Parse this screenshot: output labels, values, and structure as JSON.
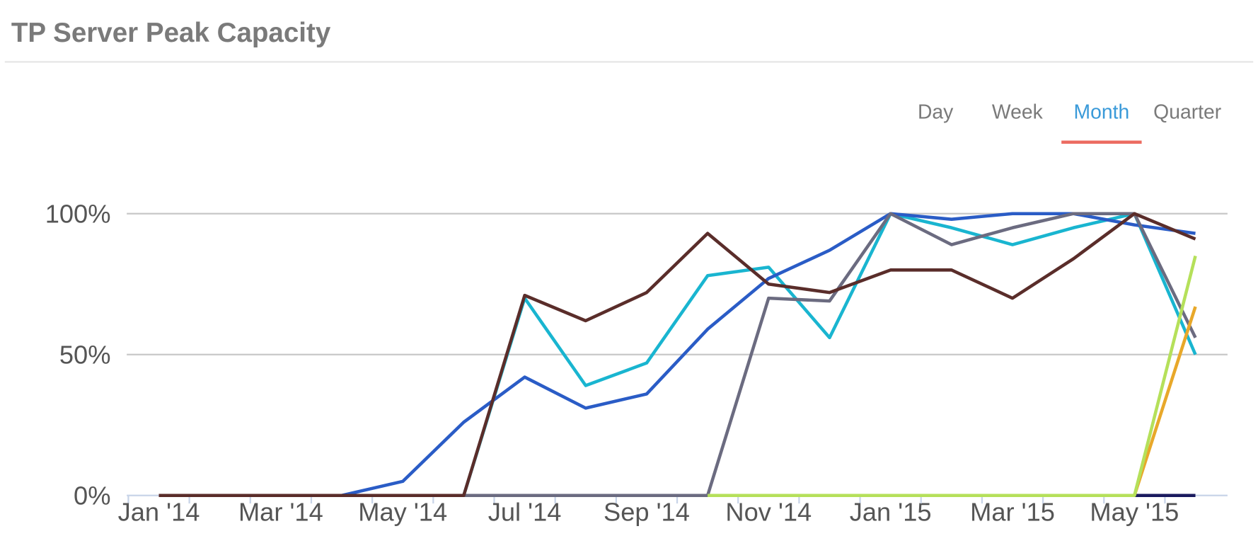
{
  "tabs": {
    "items": [
      "Day",
      "Week",
      "Month",
      "Quarter"
    ],
    "active": 2
  },
  "chart_data": {
    "type": "line",
    "title": "TP Server Peak Capacity",
    "categories": [
      "Jan '14",
      null,
      "Mar '14",
      null,
      "May '14",
      null,
      "Jul '14",
      null,
      "Sep '14",
      null,
      "Nov '14",
      null,
      "Jan '15",
      null,
      "Mar '15",
      null,
      "May '15",
      null
    ],
    "ylim": [
      0,
      100
    ],
    "yticks": [
      {
        "value": 0,
        "label": "0%"
      },
      {
        "value": 50,
        "label": "50%"
      },
      {
        "value": 100,
        "label": "100%"
      }
    ],
    "grid": true,
    "series": [
      {
        "color": "#19b5d0",
        "values": [
          0,
          0,
          0,
          0,
          0,
          0,
          70,
          39,
          47,
          78,
          81,
          56,
          100,
          95,
          89,
          95,
          100,
          50
        ]
      },
      {
        "color": "#2a5cc6",
        "values": [
          0,
          0,
          0,
          0,
          5,
          26,
          42,
          31,
          36,
          59,
          77,
          87,
          100,
          98,
          100,
          100,
          96,
          93
        ]
      },
      {
        "color": "#6b6b80",
        "values": [
          0,
          0,
          0,
          0,
          0,
          0,
          0,
          0,
          0,
          0,
          70,
          69,
          100,
          89,
          95,
          100,
          100,
          56
        ]
      },
      {
        "color": "#5a2d2a",
        "values": [
          0,
          0,
          0,
          0,
          0,
          0,
          71,
          62,
          72,
          93,
          75,
          72,
          80,
          80,
          70,
          84,
          100,
          91
        ]
      },
      {
        "color": "#1a1a5e",
        "values": [
          null,
          null,
          null,
          null,
          null,
          null,
          null,
          null,
          null,
          null,
          null,
          null,
          null,
          null,
          null,
          null,
          0,
          0
        ]
      },
      {
        "color": "#e8a82a",
        "values": [
          null,
          null,
          null,
          null,
          null,
          null,
          null,
          null,
          null,
          null,
          null,
          null,
          null,
          null,
          null,
          null,
          0,
          67
        ]
      },
      {
        "color": "#b5e05a",
        "values": [
          null,
          null,
          null,
          null,
          null,
          null,
          null,
          null,
          null,
          0,
          0,
          0,
          0,
          0,
          0,
          0,
          0,
          85
        ]
      }
    ]
  }
}
